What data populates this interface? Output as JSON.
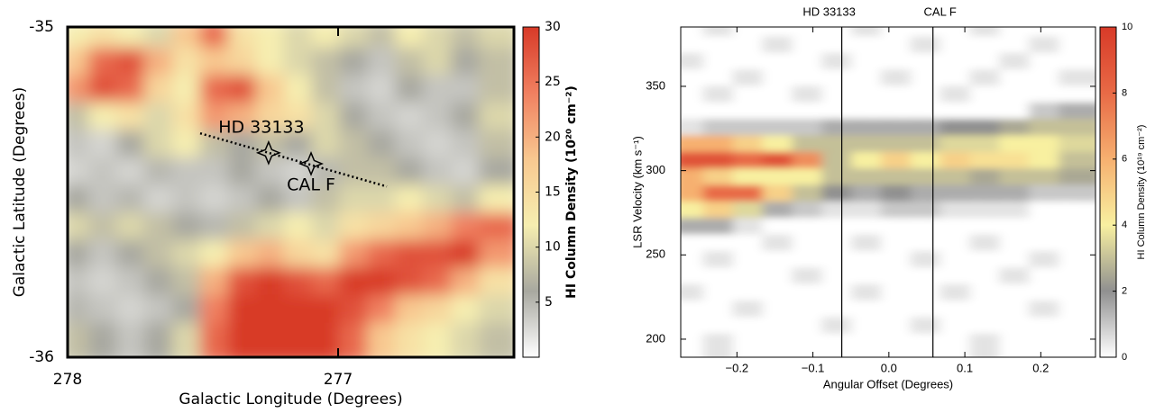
{
  "chart_data": [
    {
      "type": "heatmap",
      "xlabel": "Galactic Longitude (Degrees)",
      "ylabel": "Galactic Latitude (Degrees)",
      "xlim": [
        278,
        276.35
      ],
      "ylim": [
        -36,
        -35
      ],
      "xticks": [
        278,
        277
      ],
      "yticks": [
        -36,
        -35
      ],
      "zlim": [
        0,
        30
      ],
      "zticks": [
        5,
        10,
        15,
        20,
        25,
        30
      ],
      "colorbar_label": "HI Column Density (10²⁰ cm⁻²)",
      "colorscale": [
        "#ffffff",
        "#a8a8a0",
        "#f6eeb0",
        "#f8c890",
        "#f08060",
        "#d83a28"
      ],
      "z": [
        [
          12,
          14,
          12,
          10,
          18,
          26,
          14,
          12,
          10,
          12,
          10,
          8,
          12,
          10,
          8,
          10
        ],
        [
          18,
          26,
          28,
          20,
          14,
          18,
          16,
          12,
          10,
          8,
          6,
          4,
          8,
          10,
          6,
          8
        ],
        [
          22,
          28,
          26,
          16,
          12,
          26,
          28,
          18,
          12,
          8,
          4,
          3,
          6,
          4,
          4,
          8
        ],
        [
          8,
          12,
          14,
          10,
          14,
          22,
          20,
          16,
          14,
          10,
          6,
          4,
          3,
          4,
          6,
          10
        ],
        [
          4,
          3,
          6,
          10,
          12,
          8,
          6,
          8,
          6,
          10,
          8,
          6,
          4,
          3,
          4,
          8
        ],
        [
          3,
          4,
          3,
          5,
          4,
          4,
          6,
          4,
          3,
          5,
          8,
          8,
          6,
          4,
          3,
          6
        ],
        [
          6,
          4,
          5,
          3,
          4,
          3,
          4,
          6,
          4,
          8,
          10,
          10,
          12,
          10,
          8,
          12
        ],
        [
          10,
          8,
          10,
          8,
          6,
          5,
          8,
          10,
          12,
          10,
          14,
          16,
          18,
          20,
          24,
          26
        ],
        [
          6,
          4,
          6,
          8,
          10,
          12,
          18,
          20,
          16,
          14,
          22,
          26,
          28,
          28,
          30,
          22
        ],
        [
          4,
          3,
          4,
          6,
          8,
          20,
          28,
          30,
          28,
          26,
          30,
          30,
          28,
          26,
          20,
          14
        ],
        [
          5,
          4,
          3,
          4,
          6,
          24,
          30,
          30,
          30,
          30,
          28,
          24,
          18,
          16,
          12,
          10
        ],
        [
          8,
          6,
          4,
          6,
          10,
          26,
          30,
          30,
          30,
          30,
          26,
          18,
          14,
          12,
          10,
          8
        ]
      ],
      "markers": [
        {
          "label": "HD 33133",
          "x": 277.257,
          "y": -35.381
        },
        {
          "label": "CAL F",
          "x": 277.1,
          "y": -35.414
        }
      ],
      "cut_line": {
        "x": [
          277.51,
          276.82
        ],
        "y": [
          -35.322,
          -35.483
        ]
      }
    },
    {
      "type": "heatmap",
      "xlabel": "Angular Offset (Degrees)",
      "ylabel": "LSR Velocity (km s⁻¹)",
      "xlim": [
        -0.274,
        0.272
      ],
      "ylim": [
        189.3,
        385.2
      ],
      "xticks": [
        {
          "value": -0.2,
          "label": "−0.2"
        },
        {
          "value": -0.1,
          "label": "−0.1"
        },
        {
          "value": 0,
          "label": "0.0"
        },
        0.1,
        0.2
      ],
      "yticks": [
        200,
        250,
        300,
        350
      ],
      "zlim": [
        0,
        10
      ],
      "zticks": [
        0,
        2,
        4,
        6,
        8,
        10
      ],
      "colorbar_label": "HI Column Density (10¹⁹ cm⁻²)",
      "colorscale": [
        "#ffffff",
        "#909090",
        "#f8f0a0",
        "#f6b070",
        "#e86a46",
        "#d83a28"
      ],
      "z": [
        [
          0,
          0.5,
          0,
          0,
          0,
          0,
          0.5,
          0,
          0,
          0,
          0.5,
          0,
          0,
          0
        ],
        [
          0,
          0,
          0,
          0.5,
          0,
          0,
          0,
          0,
          0.5,
          0,
          0,
          0,
          0.5,
          0
        ],
        [
          0.5,
          0,
          0,
          0,
          0,
          0.5,
          0,
          0,
          0,
          0,
          0,
          0.5,
          0,
          0
        ],
        [
          0,
          0,
          0.5,
          0,
          0,
          0,
          0,
          0.5,
          0,
          0,
          0.5,
          0,
          0,
          0.5
        ],
        [
          0,
          0.5,
          0,
          0,
          0.5,
          0,
          0,
          0,
          0,
          0.5,
          0,
          0,
          0,
          0
        ],
        [
          0,
          0,
          0,
          0,
          0,
          0,
          0,
          0,
          0,
          0,
          0,
          0,
          1,
          1.5
        ],
        [
          0.5,
          1,
          1,
          1,
          1,
          1.5,
          1.5,
          1.5,
          1.5,
          2,
          2,
          2.5,
          3,
          3
        ],
        [
          6,
          6,
          5,
          4,
          3,
          3,
          3,
          3,
          3,
          3.5,
          3.5,
          4,
          4,
          3.5
        ],
        [
          9,
          9,
          8,
          9,
          7,
          3,
          4,
          5,
          4,
          5,
          4.5,
          4.5,
          4,
          3
        ],
        [
          6,
          5,
          4,
          4,
          4,
          3,
          3,
          3,
          3,
          3,
          2.5,
          3,
          3,
          2.5
        ],
        [
          6,
          8,
          8,
          5,
          3,
          2,
          1.5,
          2,
          1.5,
          1.5,
          1.5,
          1.5,
          1,
          1
        ],
        [
          4,
          5,
          3.5,
          1.5,
          1,
          0.5,
          0.5,
          1,
          1,
          0.5,
          0.5,
          0.5,
          0,
          0
        ],
        [
          1.5,
          1.5,
          0.5,
          0,
          0,
          0,
          0,
          0,
          0,
          0,
          0,
          0,
          0,
          0
        ],
        [
          0,
          0,
          0,
          0.5,
          0,
          0,
          0.5,
          0,
          0,
          0,
          0.5,
          0,
          0,
          0
        ],
        [
          0,
          0.5,
          0,
          0,
          0,
          0,
          0,
          0,
          0.5,
          0,
          0,
          0,
          0.5,
          0
        ],
        [
          0,
          0,
          0,
          0,
          0.5,
          0,
          0,
          0,
          0,
          0,
          0,
          0.5,
          0,
          0
        ],
        [
          0.5,
          0,
          0,
          0,
          0,
          0,
          0.5,
          0,
          0,
          0.5,
          0,
          0,
          0,
          0
        ],
        [
          0,
          0,
          0.5,
          0,
          0,
          0,
          0,
          0,
          0,
          0,
          0,
          0,
          0.5,
          0
        ],
        [
          0,
          0,
          0,
          0,
          0,
          0.5,
          0,
          0,
          0.5,
          0,
          0,
          0,
          0,
          0
        ],
        [
          0,
          0.5,
          0,
          0,
          0,
          0,
          0,
          0,
          0,
          0,
          0.5,
          0,
          0,
          0
        ]
      ],
      "vlines": [
        {
          "value": -0.062,
          "label": "HD 33133"
        },
        {
          "value": 0.058,
          "label": "CAL F"
        }
      ]
    }
  ]
}
